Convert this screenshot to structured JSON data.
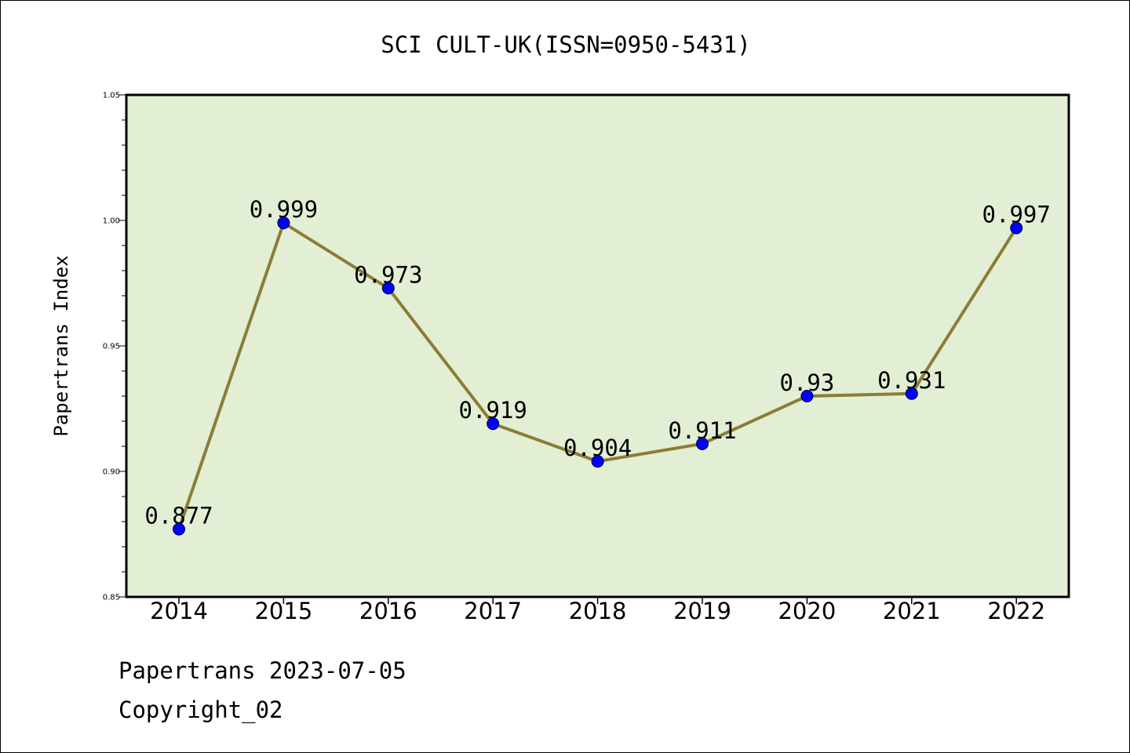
{
  "footer": {
    "line1": "Papertrans 2023-07-05",
    "line2": "Copyright_02"
  },
  "colors": {
    "plot_background": "#e2efd5",
    "line": "#8b7d35",
    "marker": "#0000ff",
    "frame": "#000000"
  },
  "chart_data": {
    "type": "line",
    "title": "SCI CULT-UK(ISSN=0950-5431)",
    "xlabel": "",
    "ylabel": "Papertrans Index",
    "categories": [
      "2014",
      "2015",
      "2016",
      "2017",
      "2018",
      "2019",
      "2020",
      "2021",
      "2022"
    ],
    "series": [
      {
        "values": [
          0.877,
          0.999,
          0.973,
          0.919,
          0.904,
          0.911,
          0.93,
          0.931,
          0.997
        ],
        "labels": [
          "0.877",
          "0.999",
          "0.973",
          "0.919",
          "0.904",
          "0.911",
          "0.93",
          "0.931",
          "0.997"
        ]
      }
    ],
    "ylim": [
      0.85,
      1.05
    ],
    "yticks": [
      0.85,
      0.9,
      0.95,
      1.0,
      1.05
    ],
    "ytick_labels": [
      "0.85",
      "0.90",
      "0.95",
      "1.00",
      "1.05"
    ],
    "minor_ytick_step": 0.01,
    "grid": false,
    "legend": "none",
    "marker": "circle"
  }
}
